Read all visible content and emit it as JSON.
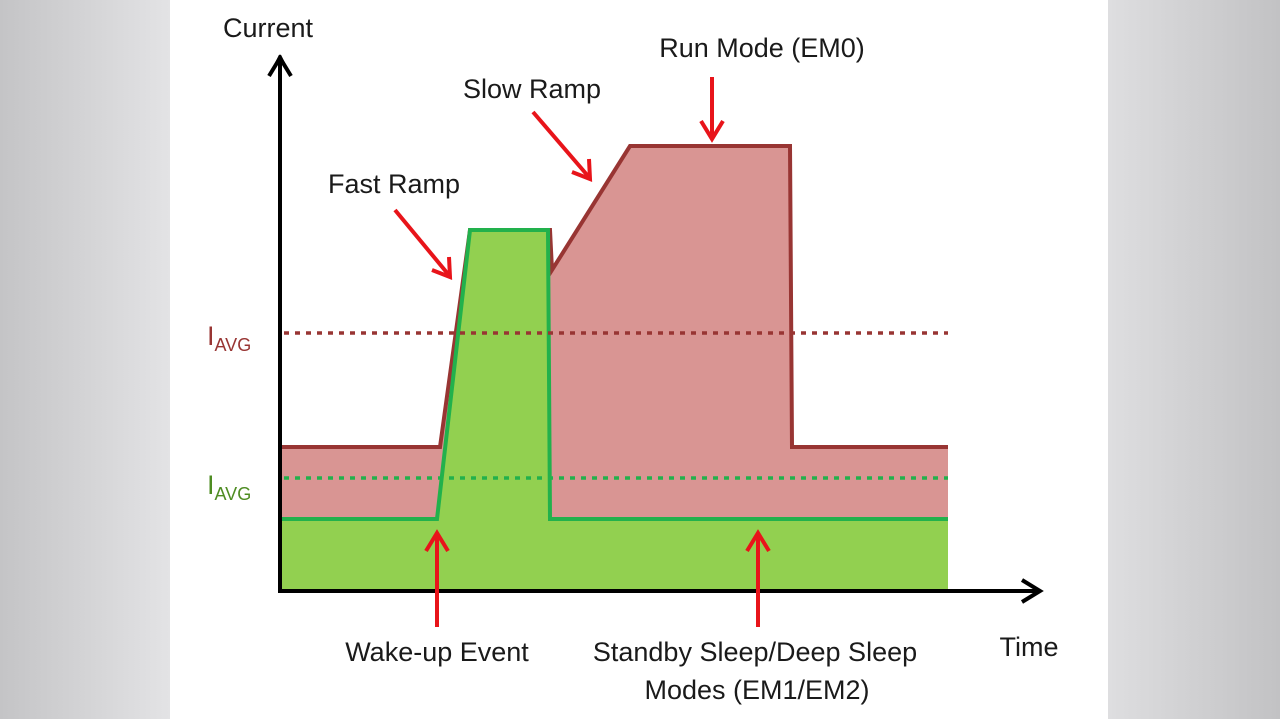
{
  "colors": {
    "run_fill": "#d99593",
    "run_line": "#983533",
    "sleep_fill": "#92d050",
    "sleep_line": "#22b14c",
    "arrow": "#e8141a",
    "axis": "#000000",
    "iavg_red": "#983533",
    "iavg_green": "#4e8c22"
  },
  "axes": {
    "y_label": "Current",
    "x_label": "Time"
  },
  "iavg_labels": [
    {
      "main": "I",
      "sub": "AVG"
    },
    {
      "main": "I",
      "sub": "AVG"
    }
  ],
  "annotations": {
    "run_mode": "Run Mode (EM0)",
    "slow_ramp": "Slow Ramp",
    "fast_ramp": "Fast Ramp",
    "wake_up": "Wake-up Event",
    "standby_line1": "Standby Sleep/Deep Sleep",
    "standby_line2": "Modes (EM1/EM2)"
  }
}
